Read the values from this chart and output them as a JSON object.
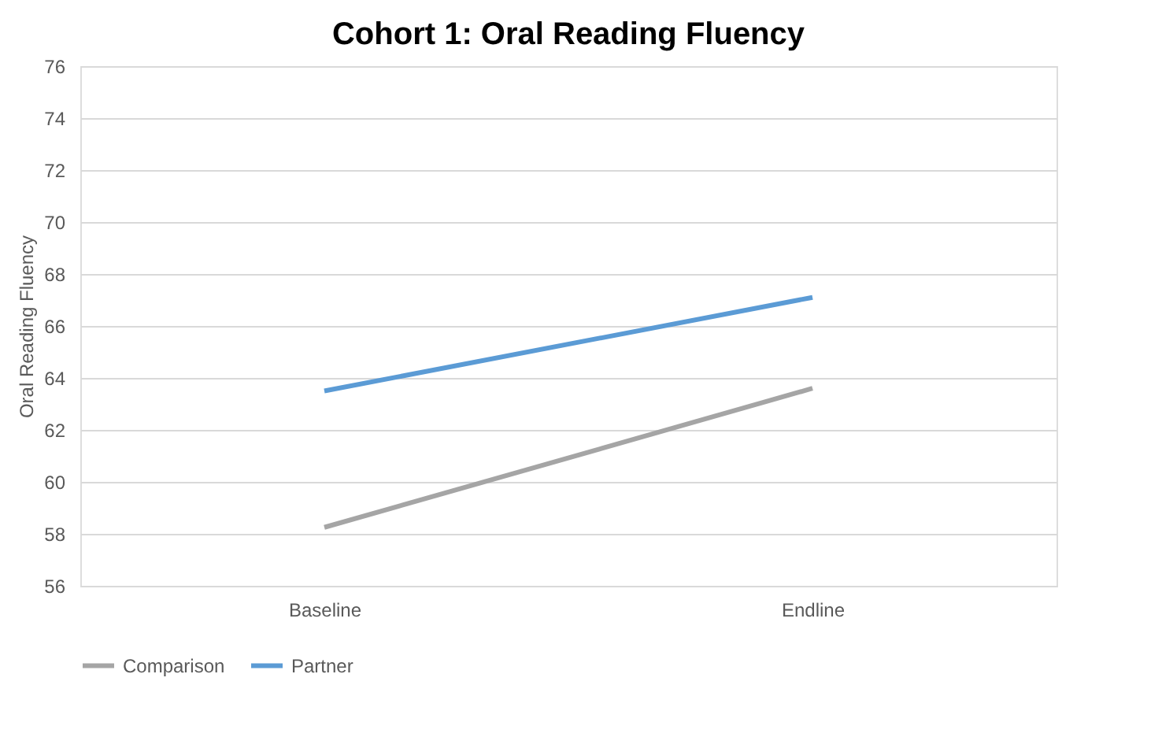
{
  "chart_data": {
    "type": "line",
    "title": "Cohort 1: Oral Reading Fluency",
    "ylabel": "Oral Reading Fluency",
    "categories": [
      "Baseline",
      "Endline"
    ],
    "series": [
      {
        "name": "Comparison",
        "color": "#a5a5a5",
        "values": [
          58.25,
          63.6
        ]
      },
      {
        "name": "Partner",
        "color": "#5b9bd5",
        "values": [
          63.5,
          67.1
        ]
      }
    ],
    "ylim": [
      56,
      76
    ],
    "yticks": [
      56,
      58,
      60,
      62,
      64,
      66,
      68,
      70,
      72,
      74,
      76
    ],
    "grid": "y",
    "legend": "bottom",
    "marker": "none",
    "line_style": "solid"
  }
}
